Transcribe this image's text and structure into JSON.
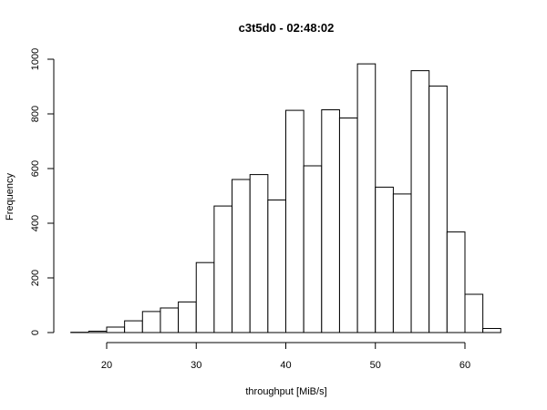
{
  "chart_data": {
    "type": "bar",
    "title": "c3t5d0 - 02:48:02",
    "xlabel": "throughput [MiB/s]",
    "ylabel": "Frequency",
    "xlim": [
      16,
      64
    ],
    "ylim": [
      0,
      1000
    ],
    "x_ticks": [
      20,
      30,
      40,
      50,
      60
    ],
    "y_ticks": [
      0,
      200,
      400,
      600,
      800,
      1000
    ],
    "bin_edges": [
      16,
      18,
      20,
      22,
      24,
      26,
      28,
      30,
      32,
      34,
      36,
      38,
      40,
      42,
      44,
      46,
      48,
      50,
      52,
      54,
      56,
      58,
      60,
      62,
      64
    ],
    "values": [
      1,
      5,
      20,
      43,
      77,
      90,
      112,
      256,
      463,
      560,
      578,
      485,
      813,
      610,
      815,
      785,
      983,
      532,
      507,
      958,
      902,
      368,
      140,
      15
    ],
    "grid": false
  }
}
